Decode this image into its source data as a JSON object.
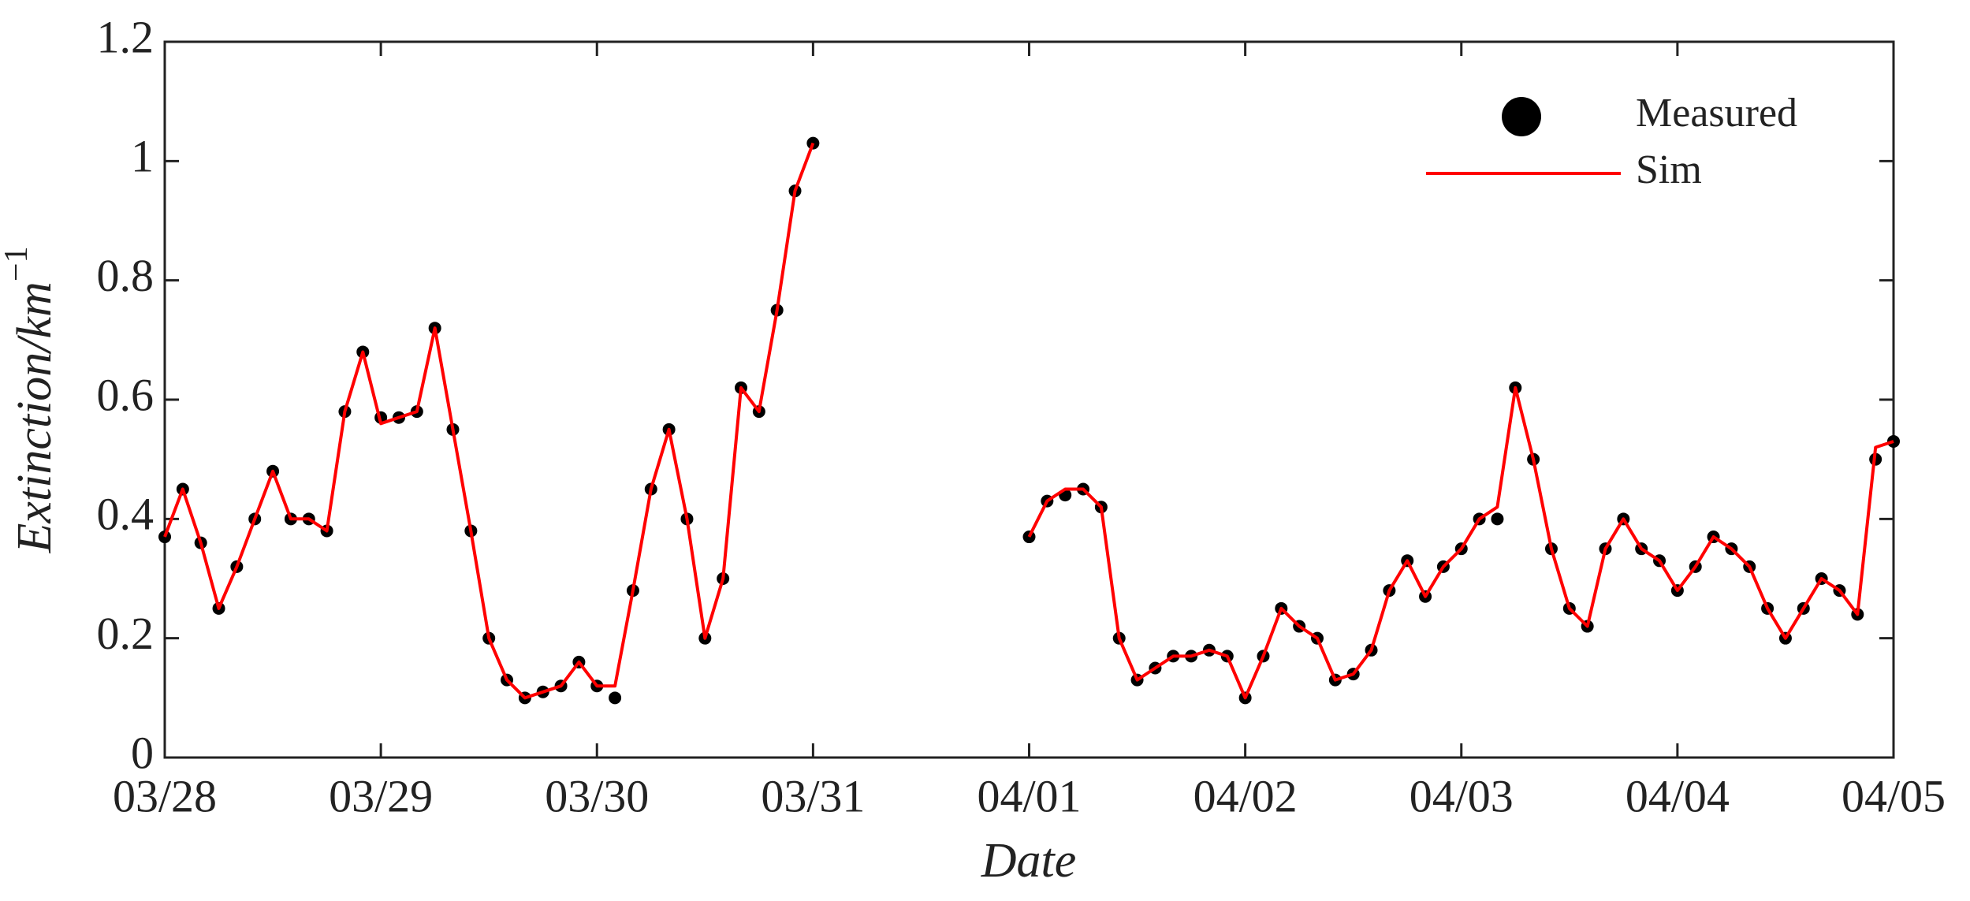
{
  "chart_data": {
    "type": "line-scatter",
    "xlabel": "Date",
    "ylabel": "Extinction/km",
    "ylabel_exponent": "−1",
    "xlim": [
      0,
      192
    ],
    "ylim": [
      0,
      1.2
    ],
    "xticks": [
      {
        "value": 0,
        "label": "03/28"
      },
      {
        "value": 24,
        "label": "03/29"
      },
      {
        "value": 48,
        "label": "03/30"
      },
      {
        "value": 72,
        "label": "03/31"
      },
      {
        "value": 96,
        "label": "04/01"
      },
      {
        "value": 120,
        "label": "04/02"
      },
      {
        "value": 144,
        "label": "04/03"
      },
      {
        "value": 168,
        "label": "04/04"
      },
      {
        "value": 192,
        "label": "04/05"
      }
    ],
    "yticks": [
      0,
      0.2,
      0.4,
      0.6,
      0.8,
      1,
      1.2
    ],
    "x": [
      0,
      2,
      4,
      6,
      8,
      10,
      12,
      14,
      16,
      18,
      20,
      22,
      24,
      26,
      28,
      30,
      32,
      34,
      36,
      38,
      40,
      42,
      44,
      46,
      48,
      50,
      52,
      54,
      56,
      58,
      60,
      62,
      64,
      66,
      68,
      70,
      72,
      84,
      96,
      98,
      100,
      102,
      104,
      106,
      108,
      110,
      112,
      114,
      116,
      118,
      120,
      122,
      124,
      126,
      128,
      130,
      132,
      134,
      136,
      138,
      140,
      142,
      144,
      146,
      148,
      150,
      152,
      154,
      156,
      158,
      160,
      162,
      164,
      166,
      168,
      170,
      172,
      174,
      176,
      178,
      180,
      182,
      184,
      186,
      188,
      190,
      192
    ],
    "series": [
      {
        "name": "Measured",
        "color": "#000000",
        "style": "dots",
        "values": [
          0.37,
          0.45,
          0.36,
          0.25,
          0.32,
          0.4,
          0.48,
          0.4,
          0.4,
          0.38,
          0.58,
          0.68,
          0.57,
          0.57,
          0.58,
          0.72,
          0.55,
          0.38,
          0.2,
          0.13,
          0.1,
          0.11,
          0.12,
          0.16,
          0.12,
          0.1,
          0.28,
          0.45,
          0.55,
          0.4,
          0.2,
          0.3,
          0.62,
          0.58,
          0.75,
          0.95,
          1.03,
          null,
          0.37,
          0.43,
          0.44,
          0.45,
          0.42,
          0.2,
          0.13,
          0.15,
          0.17,
          0.17,
          0.18,
          0.17,
          0.1,
          0.17,
          0.25,
          0.22,
          0.2,
          0.13,
          0.14,
          0.18,
          0.28,
          0.33,
          0.27,
          0.32,
          0.35,
          0.4,
          0.4,
          0.62,
          0.5,
          0.35,
          0.25,
          0.22,
          0.35,
          0.4,
          0.35,
          0.33,
          0.28,
          0.32,
          0.37,
          0.35,
          0.32,
          0.25,
          0.2,
          0.25,
          0.3,
          0.28,
          0.24,
          0.5,
          0.53
        ]
      },
      {
        "name": "Sim",
        "color": "#ff0000",
        "style": "line",
        "values": [
          0.37,
          0.45,
          0.36,
          0.25,
          0.32,
          0.4,
          0.48,
          0.4,
          0.4,
          0.38,
          0.58,
          0.68,
          0.56,
          0.57,
          0.58,
          0.72,
          0.55,
          0.38,
          0.2,
          0.13,
          0.1,
          0.11,
          0.12,
          0.16,
          0.12,
          0.12,
          0.28,
          0.45,
          0.55,
          0.4,
          0.2,
          0.3,
          0.62,
          0.58,
          0.75,
          0.95,
          1.03,
          null,
          0.37,
          0.43,
          0.45,
          0.45,
          0.42,
          0.2,
          0.13,
          0.15,
          0.17,
          0.17,
          0.18,
          0.17,
          0.1,
          0.17,
          0.25,
          0.22,
          0.2,
          0.13,
          0.14,
          0.18,
          0.28,
          0.33,
          0.27,
          0.32,
          0.35,
          0.4,
          0.42,
          0.62,
          0.5,
          0.35,
          0.25,
          0.22,
          0.35,
          0.4,
          0.35,
          0.33,
          0.28,
          0.32,
          0.37,
          0.35,
          0.32,
          0.25,
          0.2,
          0.25,
          0.3,
          0.28,
          0.24,
          0.52,
          0.53
        ]
      }
    ]
  }
}
